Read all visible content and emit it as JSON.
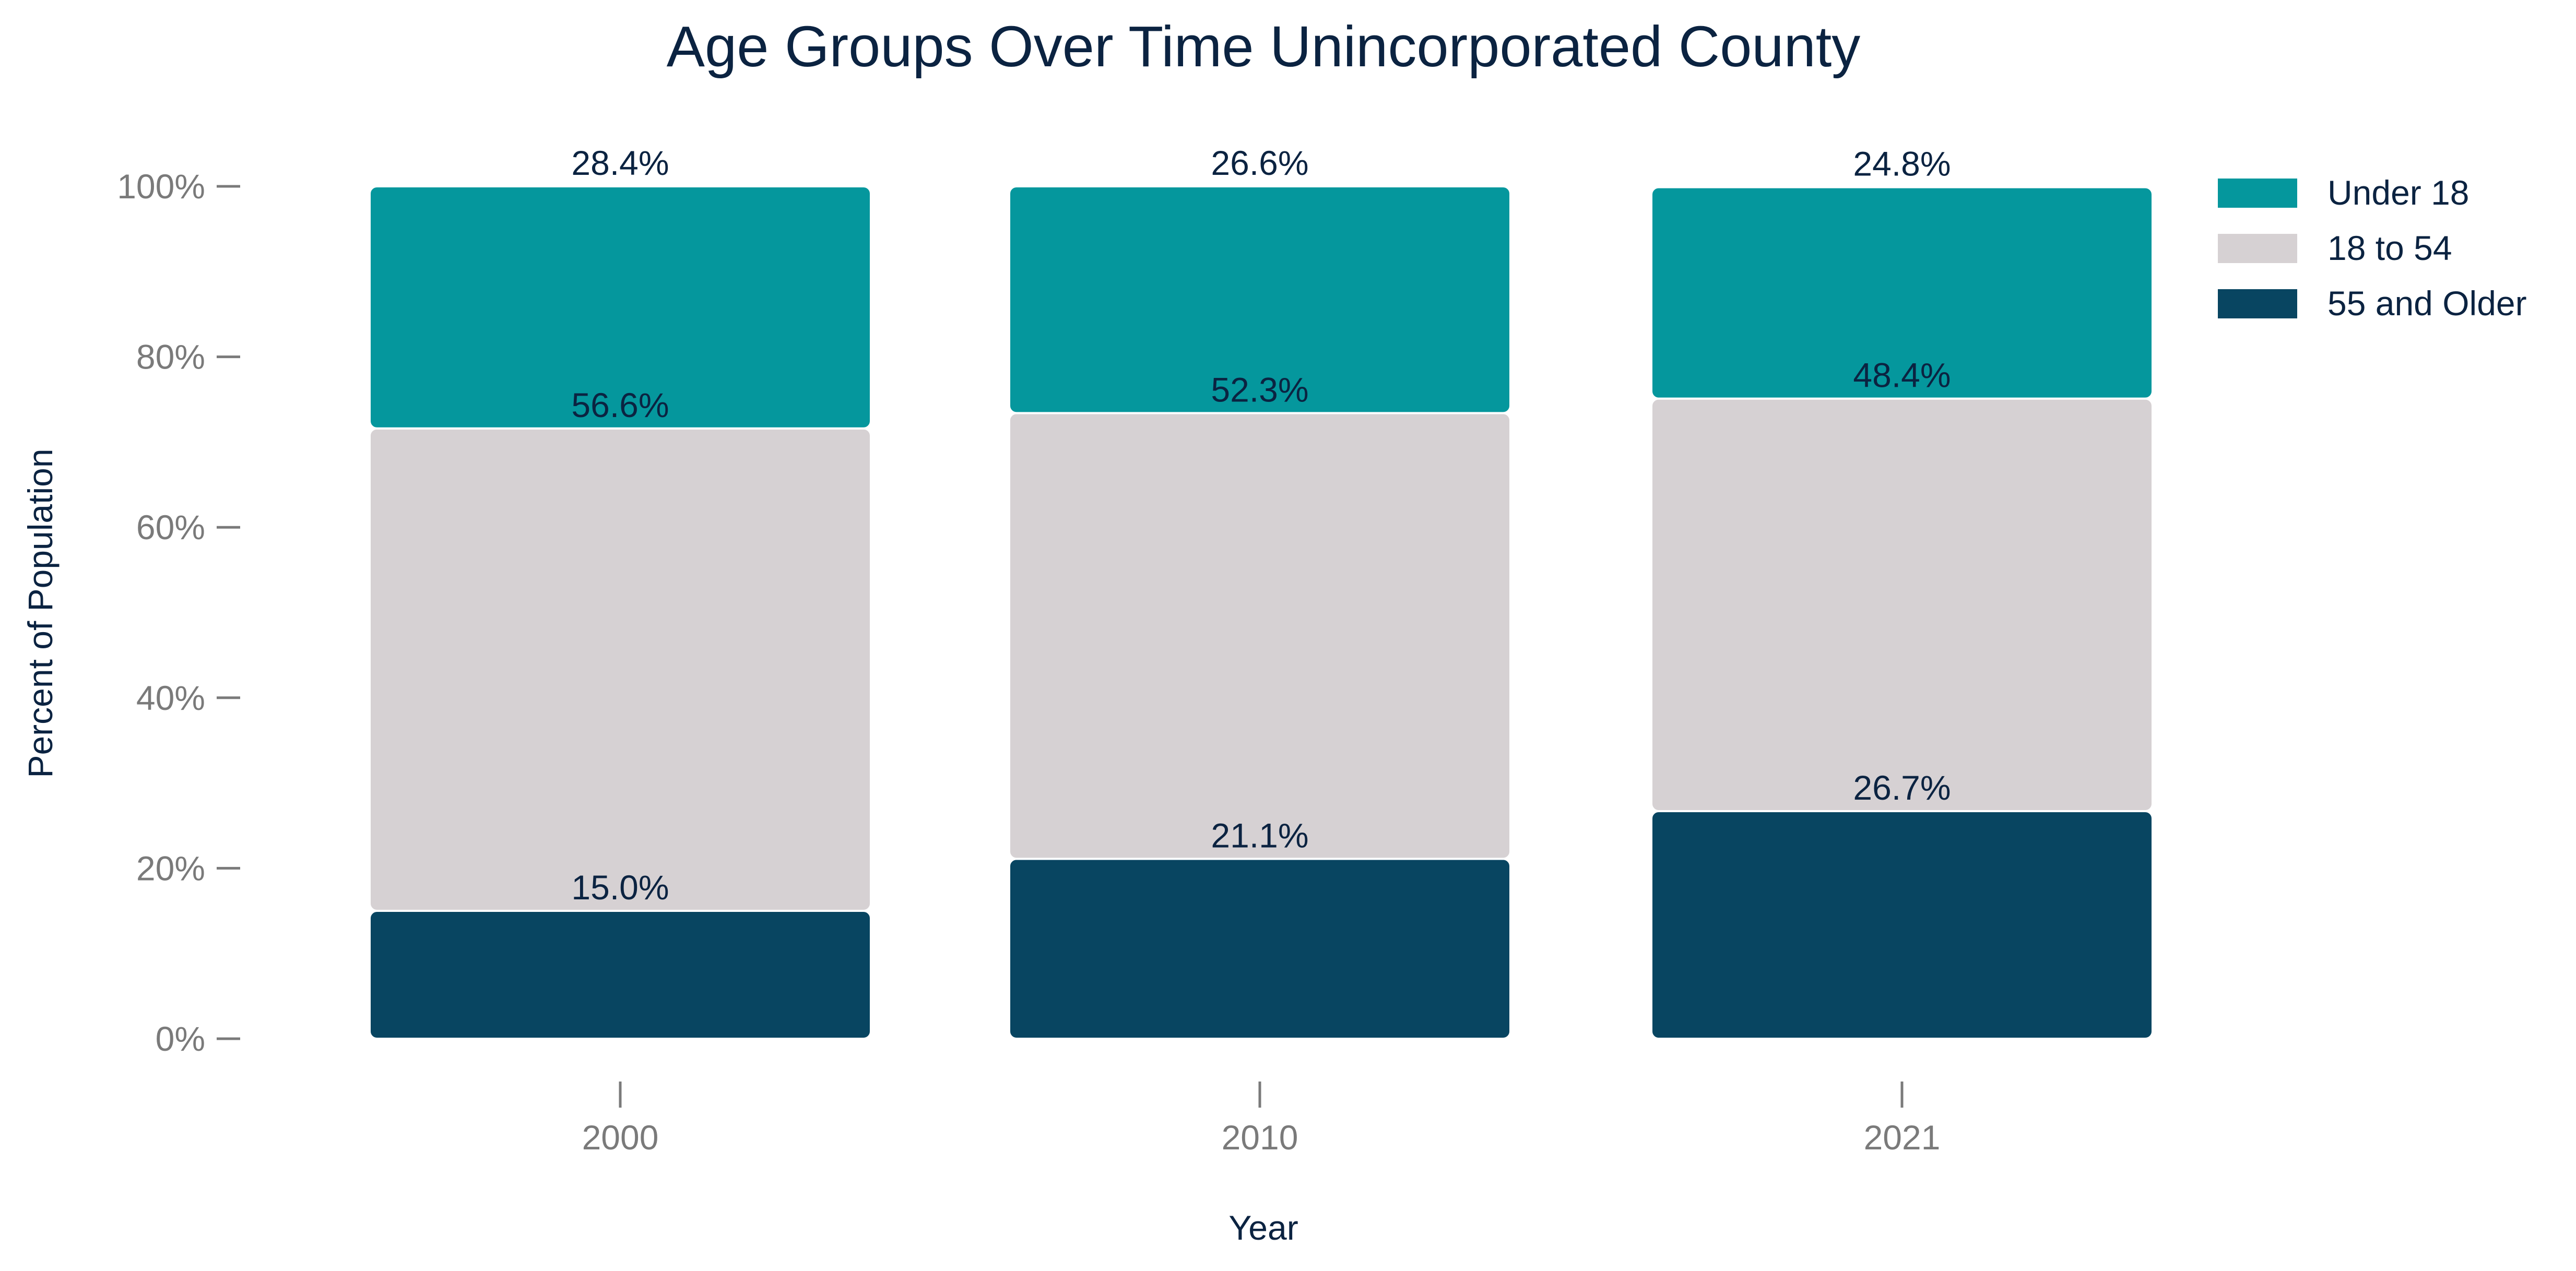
{
  "chart_data": {
    "type": "bar",
    "stacked": true,
    "title": "Age Groups Over Time Unincorporated County",
    "xlabel": "Year",
    "ylabel": "Percent of Population",
    "categories": [
      "2000",
      "2010",
      "2021"
    ],
    "ylim": [
      0,
      100
    ],
    "yticks": [
      0,
      20,
      40,
      60,
      80,
      100
    ],
    "ytick_labels": [
      "0%",
      "20%",
      "40%",
      "60%",
      "80%",
      "100%"
    ],
    "grid": false,
    "legend_position": "top-right",
    "series": [
      {
        "name": "55 and Older",
        "color": "#084561",
        "values": [
          15.0,
          21.1,
          26.7
        ],
        "labels": [
          "15.0%",
          "21.1%",
          "26.7%"
        ]
      },
      {
        "name": "18 to 54",
        "color": "#d6d1d3",
        "values": [
          56.6,
          52.3,
          48.4
        ],
        "labels": [
          "56.6%",
          "52.3%",
          "48.4%"
        ]
      },
      {
        "name": "Under 18",
        "color": "#05979d",
        "values": [
          28.4,
          26.6,
          24.8
        ],
        "labels": [
          "28.4%",
          "26.6%",
          "24.8%"
        ]
      }
    ],
    "legend_order": [
      "Under 18",
      "18 to 54",
      "55 and Older"
    ]
  },
  "colors": {
    "title": "#0b2341",
    "axis_text": "#7a7a7a",
    "label_text": "#0b2341"
  }
}
